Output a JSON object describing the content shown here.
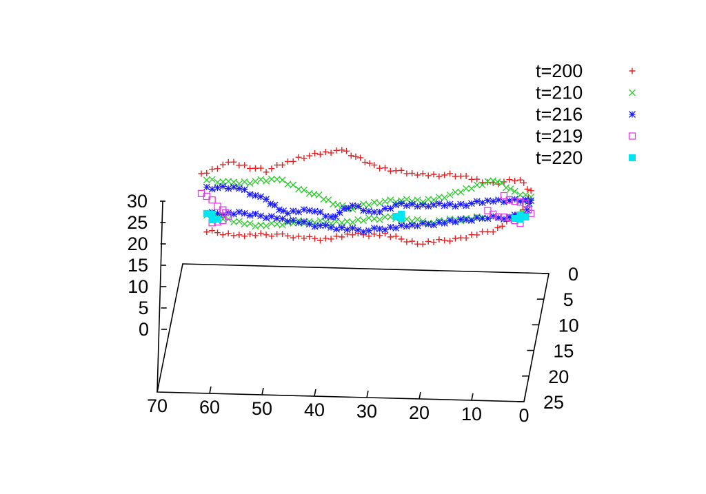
{
  "chart_data": {
    "type": "scatter",
    "title": "",
    "projection": "3d-surface-view",
    "grid": false,
    "legend_position": "top-right",
    "axes": {
      "x": {
        "ticks": [
          "70",
          "60",
          "50",
          "40",
          "30",
          "20",
          "10",
          "0"
        ],
        "range": [
          0,
          70
        ],
        "label": ""
      },
      "y": {
        "ticks": [
          "0",
          "5",
          "10",
          "15",
          "20",
          "25"
        ],
        "range": [
          0,
          25
        ],
        "label": ""
      },
      "z": {
        "ticks": [
          "0",
          "5",
          "10",
          "15",
          "20",
          "25",
          "30"
        ],
        "range": [
          0,
          30
        ],
        "label": ""
      }
    },
    "series": [
      {
        "name": "t=200",
        "color": "#e02020",
        "marker": "plus",
        "outline": [
          [
            62,
            20
          ],
          [
            57,
            23
          ],
          [
            50,
            21
          ],
          [
            44,
            24
          ],
          [
            36,
            26
          ],
          [
            30,
            22
          ],
          [
            22,
            20
          ],
          [
            15,
            20
          ],
          [
            8,
            18
          ],
          [
            3,
            19
          ],
          [
            1,
            16
          ],
          [
            3,
            11
          ],
          [
            8,
            7
          ],
          [
            15,
            5
          ],
          [
            22,
            4
          ],
          [
            28,
            6
          ],
          [
            34,
            6
          ],
          [
            40,
            5
          ],
          [
            48,
            6
          ],
          [
            56,
            6
          ],
          [
            62,
            7
          ]
        ]
      },
      {
        "name": "t=210",
        "color": "#2ecc2e",
        "marker": "cross",
        "outline": [
          [
            61,
            19
          ],
          [
            56,
            18
          ],
          [
            48,
            19
          ],
          [
            42,
            16
          ],
          [
            35,
            12
          ],
          [
            28,
            14
          ],
          [
            20,
            14
          ],
          [
            14,
            16
          ],
          [
            8,
            19
          ],
          [
            4,
            16
          ],
          [
            1,
            15
          ],
          [
            3,
            10
          ],
          [
            10,
            10
          ],
          [
            20,
            9
          ],
          [
            28,
            10
          ],
          [
            36,
            9
          ],
          [
            44,
            9
          ],
          [
            52,
            8
          ],
          [
            58,
            10
          ],
          [
            62,
            11
          ]
        ]
      },
      {
        "name": "t=216",
        "color": "#1a1aff",
        "marker": "star",
        "outline": [
          [
            61,
            17
          ],
          [
            55,
            17
          ],
          [
            50,
            14
          ],
          [
            46,
            11
          ],
          [
            42,
            12
          ],
          [
            38,
            10
          ],
          [
            34,
            13
          ],
          [
            30,
            11
          ],
          [
            26,
            13
          ],
          [
            20,
            13
          ],
          [
            14,
            13
          ],
          [
            8,
            14
          ],
          [
            4,
            14
          ],
          [
            1,
            14
          ],
          [
            2,
            11
          ],
          [
            5,
            10
          ],
          [
            10,
            10
          ],
          [
            16,
            9
          ],
          [
            24,
            8
          ],
          [
            32,
            7
          ],
          [
            40,
            8
          ],
          [
            48,
            10
          ],
          [
            55,
            11
          ],
          [
            61,
            11
          ]
        ]
      },
      {
        "name": "t=219",
        "color": "#e040e0",
        "marker": "square",
        "outline": [
          [
            62,
            16
          ],
          [
            60,
            14
          ],
          [
            58,
            12
          ],
          [
            57,
            10
          ],
          [
            59,
            9
          ],
          [
            61,
            8
          ],
          [
            6,
            15
          ],
          [
            4,
            14
          ],
          [
            2,
            13
          ],
          [
            1,
            11
          ],
          [
            3,
            9
          ],
          [
            6,
            10
          ],
          [
            8,
            11
          ],
          [
            10,
            12
          ]
        ]
      },
      {
        "name": "t=220",
        "color": "#00e5ee",
        "marker": "filled-square",
        "outline": [
          [
            61,
            11
          ],
          [
            59,
            10
          ],
          [
            61,
            9
          ],
          [
            25,
            11
          ],
          [
            26,
            10
          ],
          [
            24,
            10
          ],
          [
            3,
            11
          ],
          [
            2,
            10
          ],
          [
            4,
            10
          ],
          [
            3,
            9
          ]
        ]
      }
    ]
  }
}
